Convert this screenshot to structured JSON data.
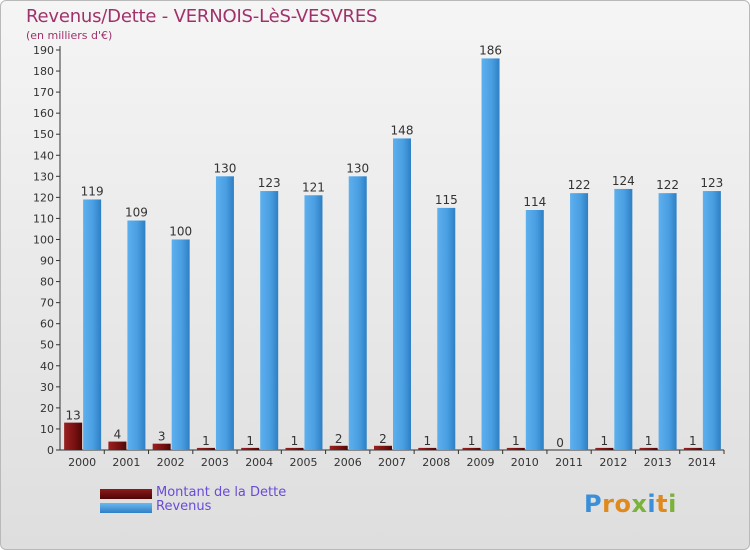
{
  "header": {
    "title": "Revenus/Dette - VERNOIS-LèS-VESVRES",
    "subtitle": "(en milliers d'€)"
  },
  "legend": {
    "items": [
      {
        "label": "Montant de la Dette",
        "color": "#6b0e0e"
      },
      {
        "label": "Revenus",
        "color": "#4a9fe2"
      }
    ]
  },
  "logo": {
    "text": "Proxiti"
  },
  "chart_data": {
    "type": "bar",
    "categories": [
      "2000",
      "2001",
      "2002",
      "2003",
      "2004",
      "2005",
      "2006",
      "2007",
      "2008",
      "2009",
      "2010",
      "2011",
      "2012",
      "2013",
      "2014"
    ],
    "series": [
      {
        "name": "Montant de la Dette",
        "values": [
          13,
          4,
          3,
          1,
          1,
          1,
          2,
          2,
          1,
          1,
          1,
          0,
          1,
          1,
          1
        ],
        "color": "#6b0e0e"
      },
      {
        "name": "Revenus",
        "values": [
          119,
          109,
          100,
          130,
          123,
          121,
          130,
          148,
          115,
          186,
          114,
          122,
          124,
          122,
          123
        ],
        "color": "#4a9fe2"
      }
    ],
    "title": "Revenus/Dette - VERNOIS-LèS-VESVRES",
    "ylabel": "(en milliers d'€)",
    "ylim": [
      0,
      190
    ],
    "ytick_step": 10,
    "grid": false,
    "legend_position": "bottom-left"
  }
}
